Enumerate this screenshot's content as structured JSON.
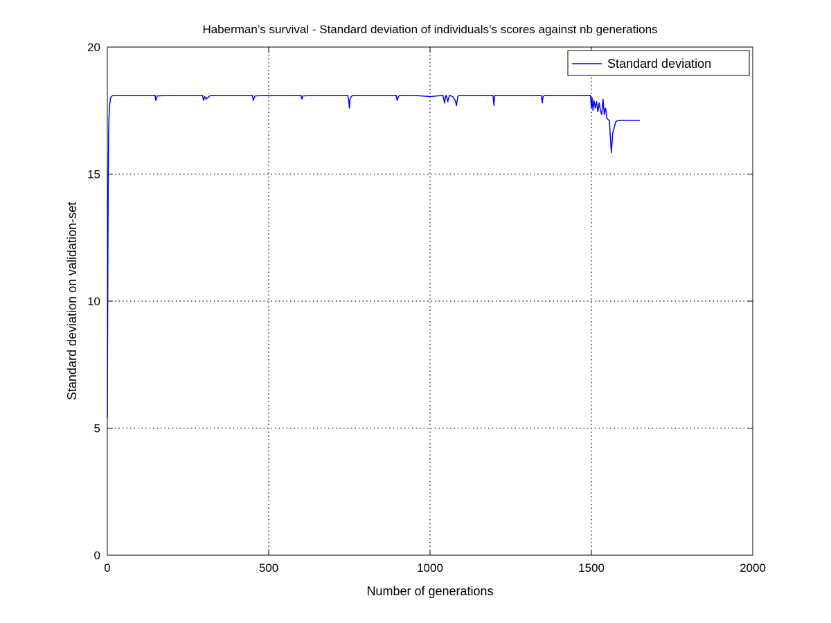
{
  "chart_data": {
    "type": "line",
    "title": "Haberman’s survival - Standard deviation of individuals’s scores against nb generations",
    "xlabel": "Number of generations",
    "ylabel": "Standard deviation on validation-set",
    "xlim": [
      0,
      2000
    ],
    "ylim": [
      0,
      20
    ],
    "x_ticks": [
      0,
      500,
      1000,
      1500,
      2000
    ],
    "y_ticks": [
      0,
      5,
      10,
      15,
      20
    ],
    "x_tick_labels": [
      "0",
      "500",
      "1000",
      "1500",
      "2000"
    ],
    "y_tick_labels": [
      "0",
      "5",
      "10",
      "15",
      "20"
    ],
    "grid": true,
    "legend_position": "top-right",
    "series": [
      {
        "name": "Standard deviation",
        "color": "#0000ff",
        "x": [
          0,
          1,
          2,
          3,
          4,
          5,
          7,
          10,
          15,
          20,
          40,
          60,
          80,
          100,
          120,
          140,
          148,
          150,
          155,
          200,
          250,
          295,
          298,
          302,
          306,
          320,
          350,
          400,
          450,
          452,
          455,
          458,
          500,
          550,
          600,
          603,
          606,
          650,
          700,
          745,
          748,
          750,
          752,
          756,
          760,
          800,
          850,
          895,
          898,
          902,
          906,
          950,
          1000,
          1040,
          1045,
          1048,
          1050,
          1055,
          1060,
          1070,
          1078,
          1082,
          1086,
          1090,
          1100,
          1150,
          1195,
          1198,
          1200,
          1202,
          1250,
          1300,
          1345,
          1348,
          1350,
          1355,
          1400,
          1450,
          1497,
          1500,
          1502,
          1505,
          1508,
          1512,
          1516,
          1520,
          1524,
          1528,
          1532,
          1536,
          1540,
          1544,
          1548,
          1552,
          1556,
          1558,
          1560,
          1562,
          1566,
          1570,
          1575,
          1580,
          1600,
          1620,
          1650
        ],
        "y": [
          5.4,
          9.0,
          12.5,
          15.0,
          16.5,
          17.2,
          17.7,
          18.0,
          18.08,
          18.1,
          18.1,
          18.1,
          18.1,
          18.1,
          18.1,
          18.1,
          18.1,
          17.9,
          18.08,
          18.1,
          18.1,
          18.1,
          17.9,
          18.05,
          17.95,
          18.1,
          18.1,
          18.1,
          18.1,
          17.9,
          18.0,
          18.08,
          18.1,
          18.1,
          18.1,
          17.95,
          18.08,
          18.1,
          18.1,
          18.1,
          17.9,
          17.6,
          17.95,
          18.05,
          18.1,
          18.1,
          18.1,
          18.1,
          17.9,
          18.05,
          18.1,
          18.1,
          18.05,
          18.1,
          17.8,
          18.05,
          18.1,
          17.85,
          18.1,
          18.05,
          17.9,
          17.7,
          18.05,
          18.1,
          18.1,
          18.1,
          18.1,
          17.7,
          18.05,
          18.1,
          18.1,
          18.1,
          18.1,
          17.8,
          18.05,
          18.1,
          18.1,
          18.1,
          18.1,
          17.6,
          18.0,
          17.5,
          17.9,
          17.6,
          17.85,
          17.45,
          17.8,
          17.5,
          17.35,
          17.95,
          17.35,
          17.6,
          17.2,
          17.15,
          17.1,
          16.6,
          16.2,
          15.85,
          16.6,
          16.8,
          17.05,
          17.1,
          17.12,
          17.12,
          17.12
        ]
      }
    ]
  }
}
